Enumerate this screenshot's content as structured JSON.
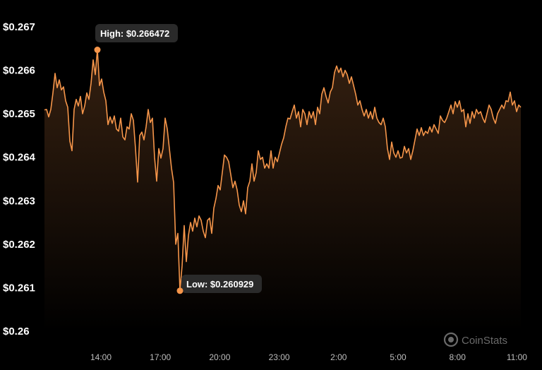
{
  "chart_data": {
    "type": "area",
    "ylim": [
      0.26,
      0.267
    ],
    "yticks": [
      "$0.26",
      "$0.261",
      "$0.262",
      "$0.263",
      "$0.264",
      "$0.265",
      "$0.266",
      "$0.267"
    ],
    "xticks": [
      "14:00",
      "17:00",
      "20:00",
      "23:00",
      "2:00",
      "5:00",
      "8:00",
      "11:00"
    ],
    "grid": false,
    "colors": {
      "line": "#f5954a",
      "fill_top": "#3a2312",
      "background": "#000000"
    },
    "high": {
      "label": "High: $0.266472",
      "value": 0.266472
    },
    "low": {
      "label": "Low: $0.260929",
      "value": 0.260929
    },
    "series": [
      {
        "values": [
          0.26509,
          0.2651,
          0.26493,
          0.2651,
          0.26548,
          0.26593,
          0.2656,
          0.26578,
          0.26555,
          0.26562,
          0.2653,
          0.26515,
          0.26437,
          0.26415,
          0.2651,
          0.26533,
          0.26518,
          0.2654,
          0.265,
          0.26518,
          0.26548,
          0.26533,
          0.2657,
          0.26624,
          0.2659,
          0.26647,
          0.26565,
          0.2658,
          0.2655,
          0.2653,
          0.26475,
          0.26493,
          0.26478,
          0.26495,
          0.26465,
          0.2646,
          0.2649,
          0.26447,
          0.2644,
          0.2647,
          0.26465,
          0.265,
          0.26485,
          0.2642,
          0.26343,
          0.2645,
          0.26458,
          0.2644,
          0.2647,
          0.2651,
          0.2648,
          0.2649,
          0.264,
          0.26345,
          0.2642,
          0.26398,
          0.2642,
          0.2649,
          0.26465,
          0.2642,
          0.26375,
          0.26342,
          0.262,
          0.26225,
          0.26093,
          0.2615,
          0.26243,
          0.2616,
          0.2622,
          0.2625,
          0.2623,
          0.2626,
          0.2624,
          0.26265,
          0.26255,
          0.2623,
          0.26215,
          0.26255,
          0.2626,
          0.26225,
          0.26283,
          0.26305,
          0.26335,
          0.26325,
          0.26365,
          0.26405,
          0.264,
          0.2639,
          0.2636,
          0.2633,
          0.26345,
          0.26325,
          0.2629,
          0.26275,
          0.263,
          0.2627,
          0.2633,
          0.26345,
          0.26385,
          0.26345,
          0.26365,
          0.26415,
          0.26395,
          0.264,
          0.26375,
          0.26385,
          0.26375,
          0.26415,
          0.26375,
          0.264,
          0.2639,
          0.2641,
          0.2643,
          0.26445,
          0.2647,
          0.2649,
          0.26488,
          0.26505,
          0.2652,
          0.2649,
          0.26505,
          0.2647,
          0.2651,
          0.265,
          0.26475,
          0.26505,
          0.2649,
          0.26505,
          0.26475,
          0.26515,
          0.265,
          0.26545,
          0.2656,
          0.2654,
          0.26525,
          0.2655,
          0.2656,
          0.26595,
          0.2661,
          0.26595,
          0.26605,
          0.26585,
          0.266,
          0.2659,
          0.2657,
          0.26585,
          0.26565,
          0.26545,
          0.2652,
          0.2653,
          0.2651,
          0.26495,
          0.2651,
          0.2649,
          0.26505,
          0.26488,
          0.26515,
          0.2649,
          0.2648,
          0.26475,
          0.2649,
          0.2647,
          0.2642,
          0.26395,
          0.26435,
          0.2641,
          0.264,
          0.26415,
          0.26398,
          0.264,
          0.26425,
          0.2641,
          0.2642,
          0.26395,
          0.26415,
          0.2644,
          0.26465,
          0.2645,
          0.26468,
          0.2645,
          0.2646,
          0.26455,
          0.2647,
          0.26458,
          0.26475,
          0.26465,
          0.26455,
          0.26495,
          0.26485,
          0.2648,
          0.2649,
          0.26505,
          0.2652,
          0.265,
          0.26528,
          0.26515,
          0.2653,
          0.26505,
          0.2651,
          0.2647,
          0.265,
          0.26478,
          0.26505,
          0.2649,
          0.2651,
          0.265,
          0.26505,
          0.2649,
          0.2648,
          0.265,
          0.2652,
          0.2651,
          0.2649,
          0.26478,
          0.265,
          0.2651,
          0.2652,
          0.26512,
          0.2653,
          0.26528,
          0.2655,
          0.2652,
          0.2653,
          0.26505,
          0.2652,
          0.26515
        ]
      }
    ]
  },
  "watermark": {
    "text": "CoinStats",
    "icon": "coinstats-logo-icon"
  }
}
